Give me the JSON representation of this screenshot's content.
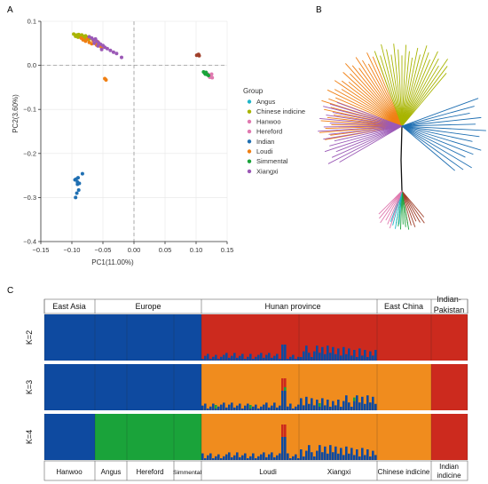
{
  "panel_labels": {
    "a": "A",
    "b": "B",
    "c": "C"
  },
  "chart_data": [
    {
      "type": "scatter",
      "panel": "A",
      "xlabel": "PC1(11.00%)",
      "ylabel": "PC2(3.60%)",
      "xlim": [
        -0.15,
        0.15
      ],
      "ylim": [
        -0.4,
        0.1
      ],
      "x_ticks": [
        -0.15,
        -0.1,
        -0.05,
        0,
        0.05,
        0.1,
        0.15
      ],
      "x_tick_labels": [
        "−0.15",
        "−0.10",
        "−0.05",
        "0.00",
        "0.05",
        "0.10",
        "0.15"
      ],
      "y_ticks": [
        0.1,
        0,
        -0.1,
        -0.2,
        -0.3,
        -0.4
      ],
      "y_tick_labels": [
        "0.1",
        "0.0",
        "−0.1",
        "−0.2",
        "−0.3",
        "−0.4"
      ],
      "grid": true,
      "legend_title": "Group",
      "legend_position": "right",
      "series": [
        {
          "name": "Angus",
          "color": "#1fb5c9",
          "x": [
            0.121,
            0.123
          ],
          "y": [
            -0.024,
            -0.026
          ]
        },
        {
          "name": "Chinese indicine",
          "color": "#a8b400",
          "x": [
            -0.097,
            -0.094,
            -0.092,
            -0.09,
            -0.089,
            -0.087,
            -0.085,
            -0.084,
            -0.082,
            -0.08,
            -0.078,
            -0.077,
            -0.075,
            -0.074,
            -0.072
          ],
          "y": [
            0.071,
            0.066,
            0.069,
            0.064,
            0.07,
            0.067,
            0.063,
            0.069,
            0.066,
            0.061,
            0.067,
            0.063,
            0.059,
            0.064,
            0.06
          ]
        },
        {
          "name": "Hanwoo",
          "color": "#e07ab0",
          "x": [
            0.12,
            0.122,
            0.125,
            0.124
          ],
          "y": [
            -0.022,
            -0.027,
            -0.02,
            -0.025
          ]
        },
        {
          "name": "Hereford",
          "color": "#e07ab0",
          "x": [
            0.126,
            0.119
          ],
          "y": [
            -0.028,
            -0.02
          ]
        },
        {
          "name": "Indian",
          "color": "#1f6fb2",
          "x": [
            -0.095,
            -0.093,
            -0.091,
            -0.09,
            -0.092,
            -0.088,
            -0.094,
            -0.089,
            -0.091,
            -0.083
          ],
          "y": [
            -0.26,
            -0.258,
            -0.27,
            -0.255,
            -0.29,
            -0.268,
            -0.3,
            -0.283,
            -0.265,
            -0.246
          ]
        },
        {
          "name": "Loudi",
          "color": "#f07f12",
          "x": [
            -0.085,
            -0.082,
            -0.078,
            -0.075,
            -0.072,
            -0.068,
            -0.066,
            -0.063,
            -0.06,
            -0.058,
            -0.055,
            -0.052,
            -0.045,
            -0.047
          ],
          "y": [
            0.062,
            0.058,
            0.055,
            0.06,
            0.052,
            0.049,
            0.057,
            0.05,
            0.046,
            0.053,
            0.044,
            0.04,
            -0.033,
            -0.03
          ]
        },
        {
          "name": "Simmental",
          "color": "#1aa33a",
          "x": [
            0.112,
            0.114,
            0.116,
            0.118,
            0.115,
            0.12
          ],
          "y": [
            -0.015,
            -0.018,
            -0.016,
            -0.021,
            -0.02,
            -0.023
          ]
        },
        {
          "name": "Xiangxi",
          "color": "#9b59b6",
          "x": [
            -0.072,
            -0.068,
            -0.065,
            -0.062,
            -0.06,
            -0.057,
            -0.054,
            -0.05,
            -0.047,
            -0.043,
            -0.038,
            -0.033,
            -0.028,
            -0.02,
            -0.064,
            -0.058,
            -0.052
          ],
          "y": [
            0.065,
            0.062,
            0.058,
            0.06,
            0.055,
            0.051,
            0.048,
            0.045,
            0.041,
            0.038,
            0.034,
            0.03,
            0.027,
            0.018,
            0.05,
            0.044,
            0.036
          ]
        },
        {
          "name": "",
          "color": "#a0402b",
          "x": [
            0.101,
            0.103,
            0.105,
            0.104
          ],
          "y": [
            0.023,
            0.024,
            0.022,
            0.025
          ]
        }
      ]
    },
    {
      "type": "diagram",
      "panel": "B",
      "description_free": true,
      "clades": [
        {
          "color": "#f07f12",
          "angle_start": 110,
          "angle_end": 190,
          "count": 30
        },
        {
          "color": "#a8b400",
          "angle_start": 50,
          "angle_end": 110,
          "count": 22
        },
        {
          "color": "#9b59b6",
          "angle_start": 160,
          "angle_end": 210,
          "count": 18
        },
        {
          "color": "#1f6fb2",
          "angle_start": -40,
          "angle_end": 20,
          "count": 14
        },
        {
          "color": "#a0402b",
          "angle_start": -80,
          "angle_end": -50,
          "count": 7
        },
        {
          "color": "#1aa33a",
          "angle_start": -100,
          "angle_end": -80,
          "count": 6
        },
        {
          "color": "#1fb5c9",
          "angle_start": -110,
          "angle_end": -95,
          "count": 4
        },
        {
          "color": "#e07ab0",
          "angle_start": -135,
          "angle_end": -108,
          "count": 6
        }
      ]
    },
    {
      "type": "bar",
      "panel": "C",
      "region_labels": [
        "East Asia",
        "Europe",
        "Hunan province",
        "East China",
        "Indian-\nPakistan"
      ],
      "breed_labels": [
        "Hanwoo",
        "Angus",
        "Hereford",
        "Simmental",
        "Loudi",
        "Xiangxi",
        "Chinese indicine",
        "Indian\nindicine"
      ],
      "k_labels": [
        "K=2",
        "K=3",
        "K=4"
      ],
      "colors": {
        "blue": "#0e4aa0",
        "red": "#cc2a1e",
        "orange": "#f08c1e",
        "green": "#1aa33a"
      }
    }
  ]
}
